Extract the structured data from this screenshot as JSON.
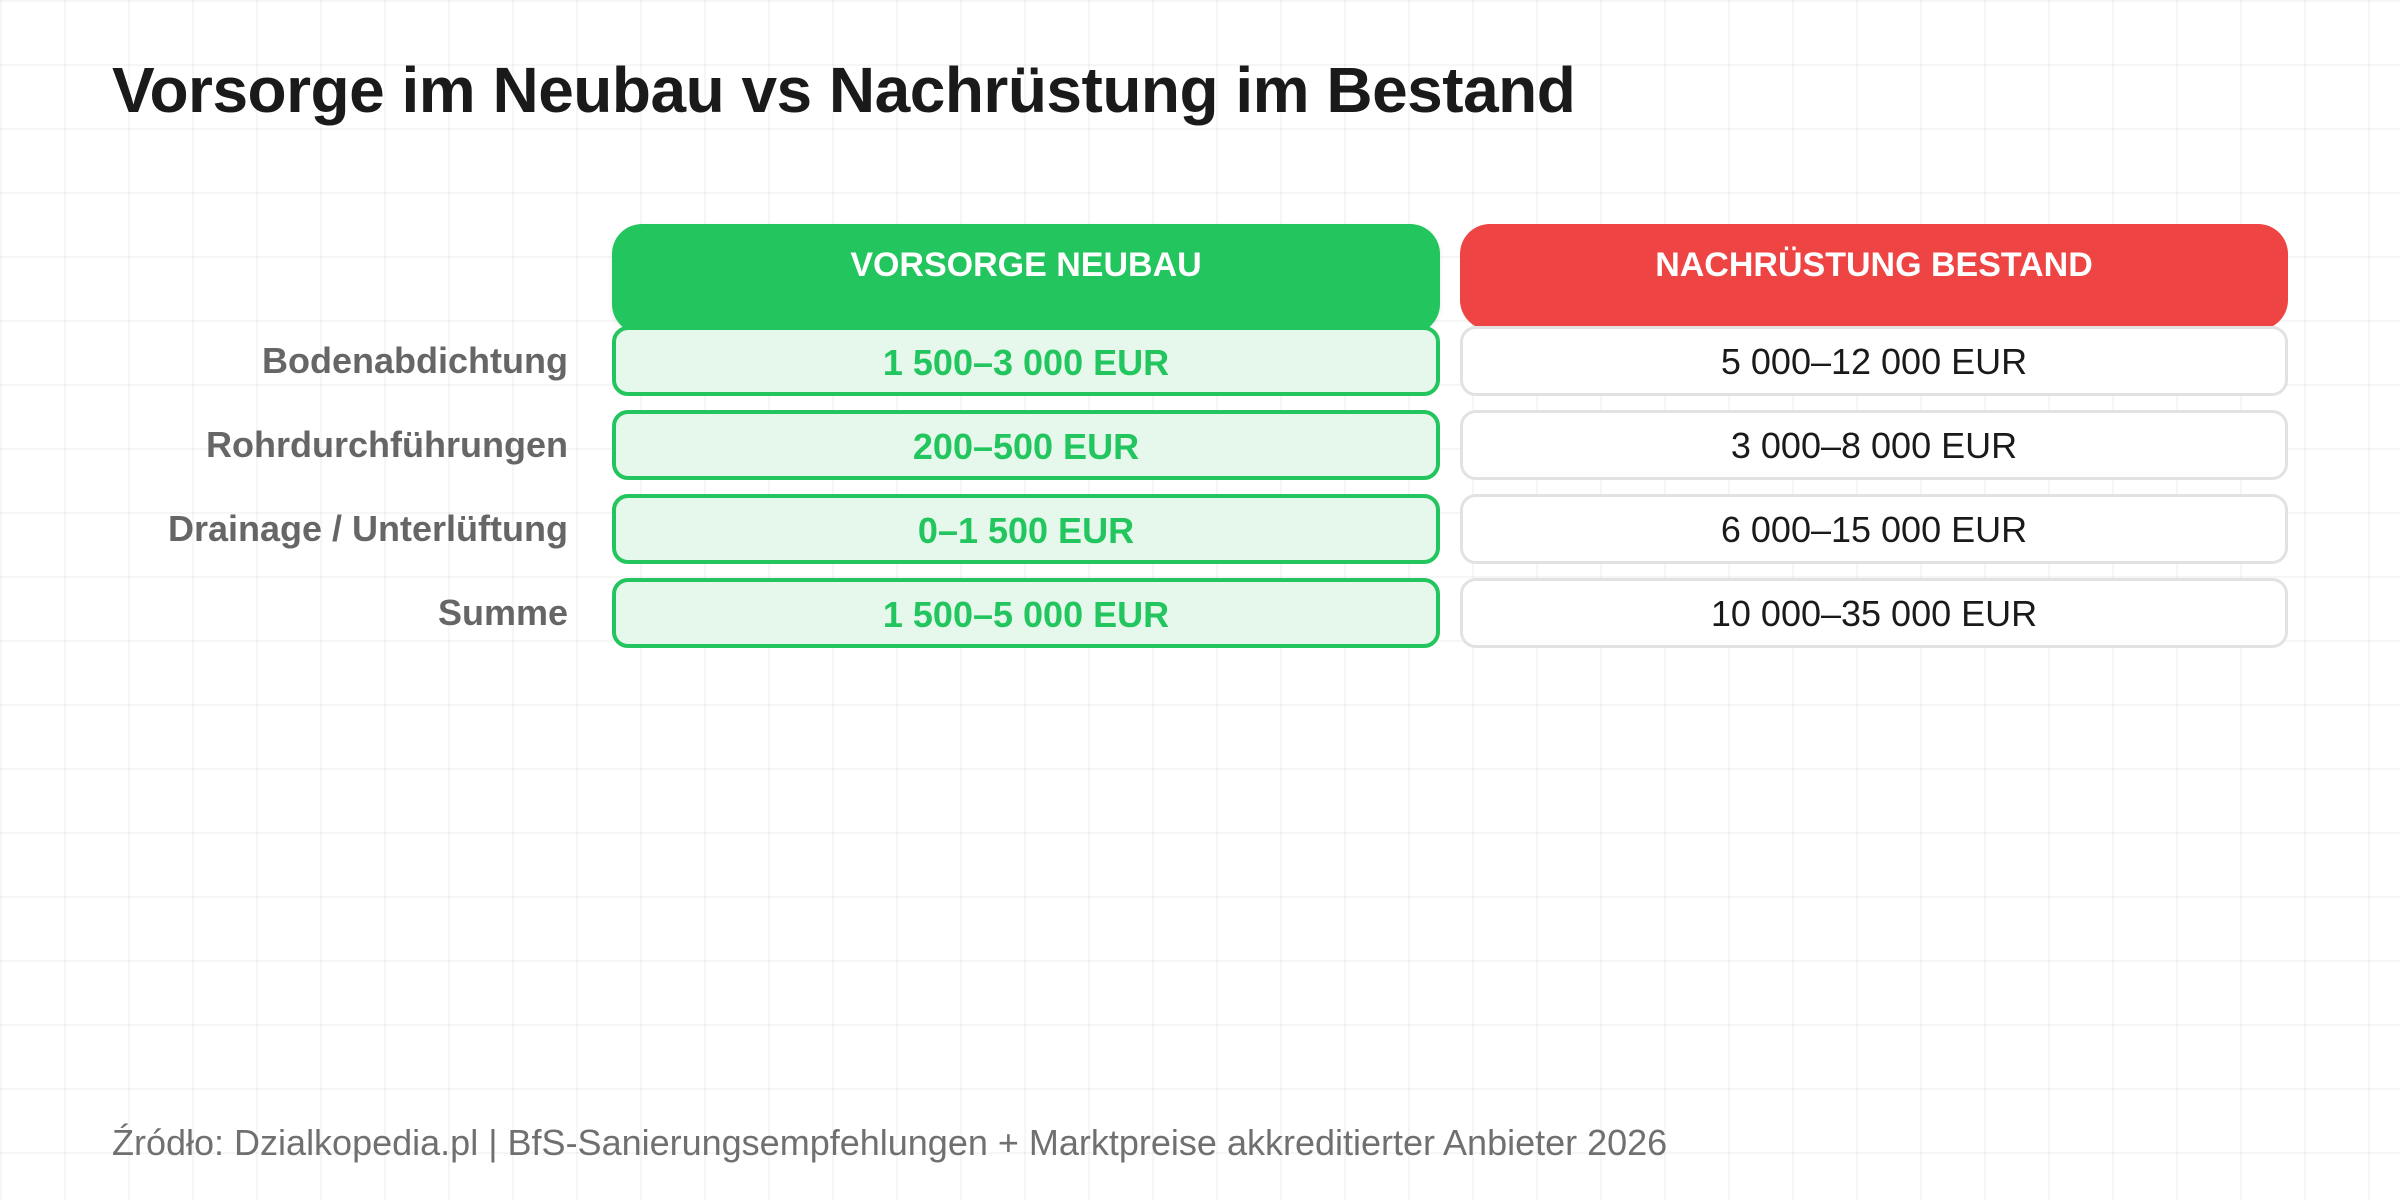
{
  "title": "Vorsorge im Neubau vs Nachrüstung im Bestand",
  "columns": {
    "neubau": {
      "label": "VORSORGE NEUBAU",
      "color": "#22c55e"
    },
    "bestand": {
      "label": "NACHRÜSTUNG BESTAND",
      "color": "#ef4444"
    }
  },
  "rows": [
    {
      "label": "Bodenabdichtung",
      "neubau": "1 500–3 000 EUR",
      "bestand": "5 000–12 000 EUR"
    },
    {
      "label": "Rohrdurchführungen",
      "neubau": "200–500 EUR",
      "bestand": "3 000–8 000 EUR"
    },
    {
      "label": "Drainage / Unterlüftung",
      "neubau": "0–1 500 EUR",
      "bestand": "6 000–15 000 EUR"
    },
    {
      "label": "Summe",
      "neubau": "1 500–5 000 EUR",
      "bestand": "10 000–35 000 EUR"
    }
  ],
  "source": "Źródło: Dzialkopedia.pl | BfS-Sanierungsempfehlungen + Marktpreise akkreditierter Anbieter 2026",
  "chart_data": {
    "type": "table",
    "title": "Vorsorge im Neubau vs Nachrüstung im Bestand",
    "columns": [
      "VORSORGE NEUBAU",
      "NACHRÜSTUNG BESTAND"
    ],
    "rows": [
      {
        "category": "Bodenabdichtung",
        "values": [
          "1 500–3 000 EUR",
          "5 000–12 000 EUR"
        ]
      },
      {
        "category": "Rohrdurchführungen",
        "values": [
          "200–500 EUR",
          "3 000–8 000 EUR"
        ]
      },
      {
        "category": "Drainage / Unterlüftung",
        "values": [
          "0–1 500 EUR",
          "6 000–15 000 EUR"
        ]
      },
      {
        "category": "Summe",
        "values": [
          "1 500–5 000 EUR",
          "10 000–35 000 EUR"
        ]
      }
    ],
    "series": [
      {
        "name": "VORSORGE NEUBAU",
        "ranges_eur": [
          [
            1500,
            3000
          ],
          [
            200,
            500
          ],
          [
            0,
            1500
          ],
          [
            1500,
            5000
          ]
        ]
      },
      {
        "name": "NACHRÜSTUNG BESTAND",
        "ranges_eur": [
          [
            5000,
            12000
          ],
          [
            3000,
            8000
          ],
          [
            6000,
            15000
          ],
          [
            10000,
            35000
          ]
        ]
      }
    ]
  }
}
